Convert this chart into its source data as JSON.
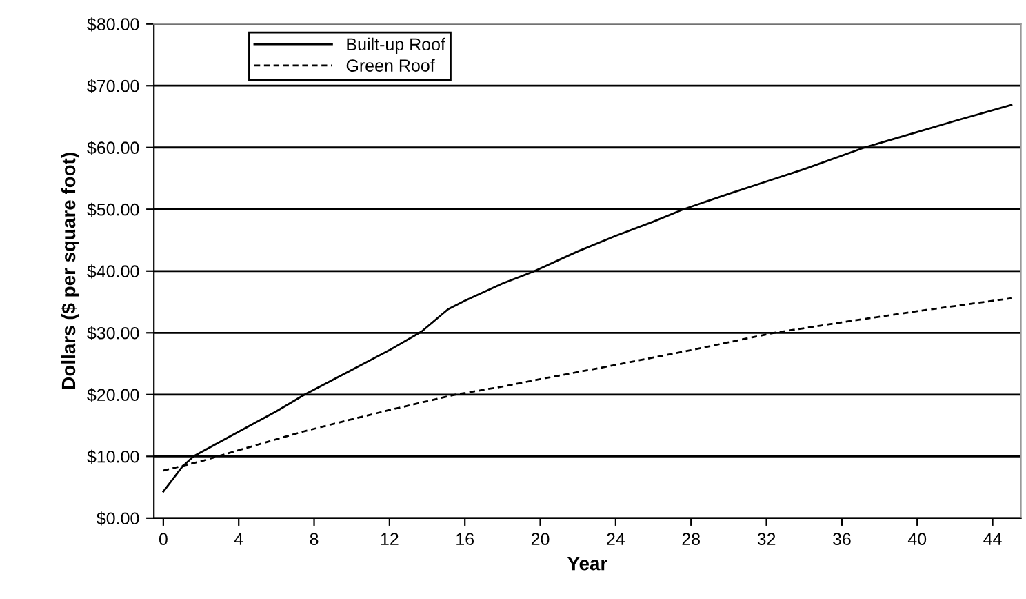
{
  "chart_data": {
    "type": "line",
    "xlabel": "Year",
    "ylabel": "Dollars ($ per square foot)",
    "xlim": [
      -0.5,
      45.5
    ],
    "xticks": [
      0,
      4,
      8,
      12,
      16,
      20,
      24,
      28,
      32,
      36,
      40,
      44
    ],
    "ylim": [
      0,
      80
    ],
    "yticks": [
      {
        "value": 0,
        "label": "$0.00"
      },
      {
        "value": 10,
        "label": "$10.00"
      },
      {
        "value": 20,
        "label": "$20.00"
      },
      {
        "value": 30,
        "label": "$30.00"
      },
      {
        "value": 40,
        "label": "$40.00"
      },
      {
        "value": 50,
        "label": "$50.00"
      },
      {
        "value": 60,
        "label": "$60.00"
      },
      {
        "value": 70,
        "label": "$70.00"
      },
      {
        "value": 80,
        "label": "$80.00"
      }
    ],
    "grid": "y",
    "legend": "top left",
    "marker": "none",
    "series": [
      {
        "name": "Built-up Roof",
        "color": "#000000",
        "line_style": "solid",
        "x": [
          0,
          1,
          1.6,
          4,
          6,
          7.5,
          10,
          12,
          13.7,
          15.1,
          16,
          18,
          19.7,
          22,
          24,
          26,
          27.6,
          30,
          32,
          34,
          37.2,
          40,
          42,
          45
        ],
        "values": [
          4.3,
          8.3,
          10,
          14,
          17.3,
          20,
          24,
          27.2,
          30.2,
          33.8,
          35.2,
          38,
          40,
          43.2,
          45.7,
          48,
          50,
          52.5,
          54.5,
          56.5,
          60,
          62.5,
          64.3,
          66.9
        ]
      },
      {
        "name": "Green Roof",
        "color": "#000000",
        "line_style": "dashed",
        "x": [
          0,
          2,
          4,
          7.4,
          10,
          12,
          15.5,
          18,
          20,
          24,
          28,
          32.4,
          36,
          40,
          45
        ],
        "values": [
          7.7,
          9.2,
          11,
          14,
          16,
          17.5,
          20,
          21.3,
          22.5,
          24.8,
          27.2,
          30,
          31.7,
          33.5,
          35.6
        ]
      }
    ]
  }
}
